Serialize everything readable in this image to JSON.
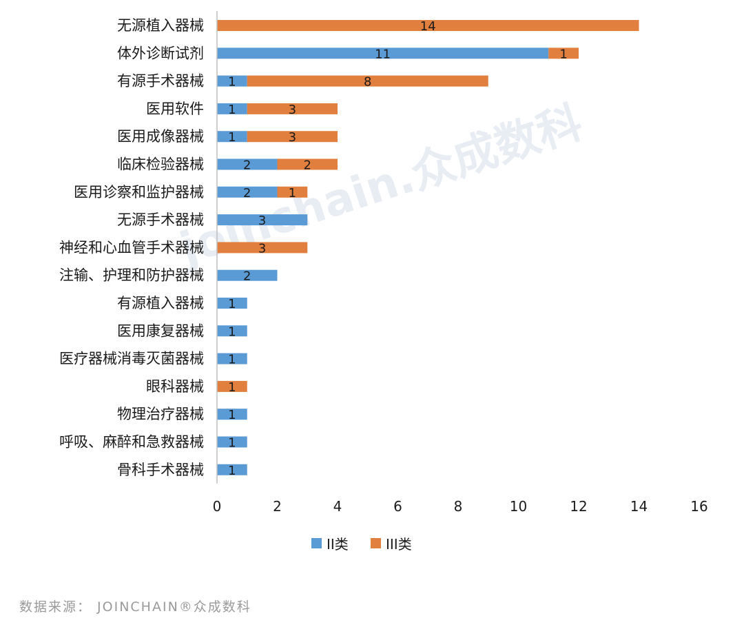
{
  "watermark": "joinchain.众成数科",
  "source": "数据来源： JOINCHAIN®众成数科",
  "colors": {
    "ii": "#5b9bd5",
    "iii": "#e07f3e",
    "axis": "#bfbfbf",
    "text": "#1a1a1a"
  },
  "chart_data": {
    "type": "bar",
    "orientation": "horizontal",
    "stacked": true,
    "categories": [
      "无源植入器械",
      "体外诊断试剂",
      "有源手术器械",
      "医用软件",
      "医用成像器械",
      "临床检验器械",
      "医用诊察和监护器械",
      "无源手术器械",
      "神经和心血管手术器械",
      "注输、护理和防护器械",
      "有源植入器械",
      "医用康复器械",
      "医疗器械消毒灭菌器械",
      "眼科器械",
      "物理治疗器械",
      "呼吸、麻醉和急救器械",
      "骨科手术器械"
    ],
    "series": [
      {
        "name": "II类",
        "values": [
          0,
          11,
          1,
          1,
          1,
          2,
          2,
          3,
          0,
          2,
          1,
          1,
          1,
          0,
          1,
          1,
          1
        ]
      },
      {
        "name": "III类",
        "values": [
          14,
          1,
          8,
          3,
          3,
          2,
          1,
          0,
          3,
          0,
          0,
          0,
          0,
          1,
          0,
          0,
          0
        ]
      }
    ],
    "xlim": [
      0,
      16
    ],
    "xticks": [
      "0",
      "2",
      "4",
      "6",
      "8",
      "10",
      "12",
      "14",
      "16"
    ],
    "grid": false,
    "legend_position": "bottom"
  }
}
